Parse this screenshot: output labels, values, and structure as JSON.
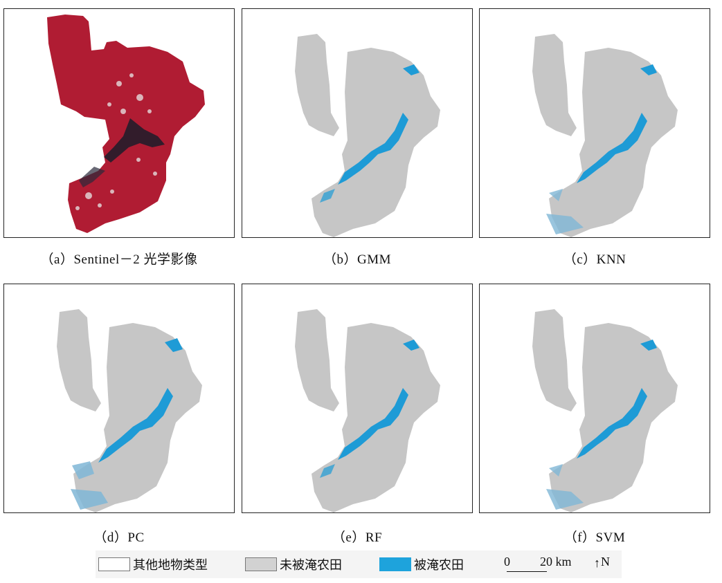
{
  "panels": [
    {
      "id": "a",
      "caption": "（a）Sentinel－2 光学影像",
      "kind": "optical"
    },
    {
      "id": "b",
      "caption": "（b）GMM",
      "kind": "classified"
    },
    {
      "id": "c",
      "caption": "（c）KNN",
      "kind": "classified"
    },
    {
      "id": "d",
      "caption": "（d）PC",
      "kind": "classified"
    },
    {
      "id": "e",
      "caption": "（e）RF",
      "kind": "classified"
    },
    {
      "id": "f",
      "caption": "（f）SVM",
      "kind": "classified"
    }
  ],
  "legend": {
    "items": [
      {
        "label": "其他地物类型",
        "color": "#ffffff"
      },
      {
        "label": "未被淹农田",
        "color": "#d2d2d2"
      },
      {
        "label": "被淹农田",
        "color": "#1ea3dc"
      }
    ],
    "scale": {
      "zero": "0",
      "end": "20 km"
    },
    "north": "N"
  },
  "colors": {
    "optical_red": "#b01c33",
    "optical_dark": "#1c1c2a",
    "unflooded": "#c6c6c6",
    "flooded": "#1e9bd6"
  }
}
